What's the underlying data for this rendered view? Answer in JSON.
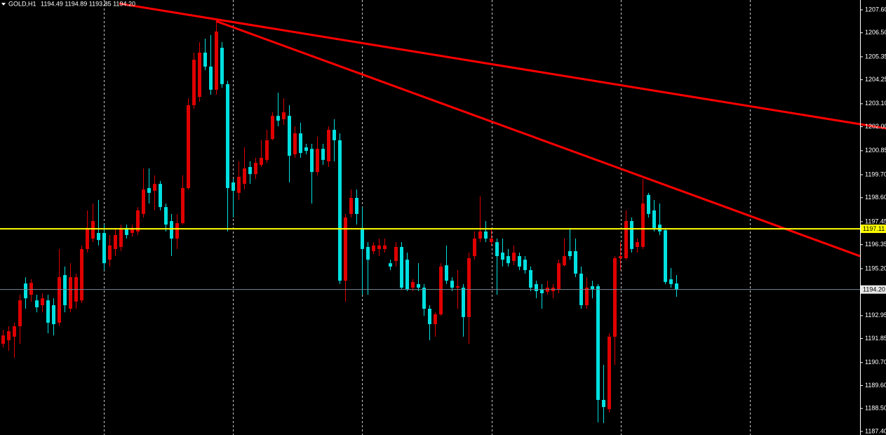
{
  "chart_data": {
    "type": "candlestick",
    "title": "GOLD,H1",
    "subtitle": "1194.49 1194.89 1193.85 1194.20",
    "up_color": "#e00000",
    "down_color": "#00e0e0",
    "ylim": [
      1187.23,
      1208.07
    ],
    "yticks": [
      {
        "value": 1207.6,
        "label": "1207.60"
      },
      {
        "value": 1206.5,
        "label": "1206.50"
      },
      1205.35,
      1204.25,
      {
        "value": 1203.1,
        "label": "1203.10"
      },
      {
        "value": 1202,
        "label": "1202.00"
      },
      1200.85,
      {
        "value": 1199.7,
        "label": "1199.70"
      },
      {
        "value": 1198.6,
        "label": "1198.60"
      },
      1197.45,
      1196.35,
      {
        "value": 1195.2,
        "label": "1195.20"
      },
      1192.95,
      1191.85,
      {
        "value": 1190.7,
        "label": "1190.70"
      },
      {
        "value": 1189.6,
        "label": "1189.60"
      },
      {
        "value": 1188.5,
        "label": "1188.50"
      },
      {
        "value": 1187.4,
        "label": "1187.40"
      }
    ],
    "levels": [
      {
        "value": 1197.11,
        "label": "1197.11",
        "color": "#ffff00"
      }
    ],
    "bid": {
      "value": 1194.2,
      "label": "1194.20",
      "color": "#778899"
    },
    "trendlines": [
      {
        "color": "#ff0000",
        "values": [
          1207.9,
          1201.92
        ]
      },
      {
        "color": "#ff0000",
        "values": [
          1207.06,
          1195.8
        ]
      }
    ],
    "ohlc": [
      [
        1191.6,
        1192.27,
        1191.43,
        1192.0
      ],
      [
        1191.77,
        1192.44,
        1191.26,
        1192.2
      ],
      [
        1191.94,
        1192.61,
        1190.93,
        1192.44
      ],
      [
        1192.44,
        1193.95,
        1191.6,
        1193.68
      ],
      [
        1194.49,
        1194.79,
        1193.28,
        1193.78
      ],
      [
        1193.95,
        1194.69,
        1193.62,
        1194.52
      ],
      [
        1193.68,
        1193.95,
        1193.11,
        1193.35
      ],
      [
        1193.45,
        1194.02,
        1193.11,
        1193.78
      ],
      [
        1193.68,
        1193.95,
        1192.1,
        1192.61
      ],
      [
        1193.45,
        1193.78,
        1192.0,
        1192.54
      ],
      [
        1192.61,
        1196.14,
        1192.44,
        1194.79
      ],
      [
        1194.89,
        1195.3,
        1193.11,
        1193.45
      ],
      [
        1193.28,
        1195.46,
        1193.11,
        1194.79
      ],
      [
        1193.62,
        1194.96,
        1193.28,
        1194.79
      ],
      [
        1193.68,
        1196.31,
        1193.55,
        1196.14
      ],
      [
        1196.14,
        1197.99,
        1195.97,
        1197.15
      ],
      [
        1196.64,
        1198.32,
        1196.47,
        1197.48
      ],
      [
        1196.91,
        1198.49,
        1196.31,
        1196.57
      ],
      [
        1196.91,
        1197.31,
        1195.13,
        1195.46
      ],
      [
        1195.63,
        1196.81,
        1195.3,
        1196.31
      ],
      [
        1196.14,
        1197.15,
        1195.8,
        1196.81
      ],
      [
        1196.24,
        1197.31,
        1196.04,
        1197.15
      ],
      [
        1197.15,
        1197.31,
        1196.64,
        1196.81
      ],
      [
        1196.91,
        1197.31,
        1196.74,
        1197.15
      ],
      [
        1196.98,
        1198.15,
        1196.81,
        1197.99
      ],
      [
        1197.82,
        1200.0,
        1197.65,
        1198.99
      ],
      [
        1199.06,
        1200.0,
        1198.32,
        1198.83
      ],
      [
        1198.93,
        1199.67,
        1197.99,
        1199.26
      ],
      [
        1199.26,
        1199.4,
        1197.99,
        1198.15
      ],
      [
        1198.15,
        1198.32,
        1196.98,
        1197.31
      ],
      [
        1197.48,
        1197.82,
        1195.8,
        1196.64
      ],
      [
        1196.64,
        1197.82,
        1196.14,
        1197.38
      ],
      [
        1197.38,
        1199.67,
        1197.31,
        1199.06
      ],
      [
        1199.06,
        1203.36,
        1198.99,
        1203.03
      ],
      [
        1203.03,
        1205.55,
        1202.86,
        1205.21
      ],
      [
        1203.43,
        1206.05,
        1203.2,
        1205.55
      ],
      [
        1205.55,
        1206.22,
        1204.71,
        1204.88
      ],
      [
        1204.88,
        1206.39,
        1203.53,
        1203.77
      ],
      [
        1203.77,
        1207.06,
        1203.53,
        1206.56
      ],
      [
        1205.78,
        1206.05,
        1203.87,
        1204.04
      ],
      [
        1204.04,
        1204.2,
        1196.98,
        1199.06
      ],
      [
        1199.33,
        1199.5,
        1197.65,
        1198.93
      ],
      [
        1198.83,
        1200.34,
        1198.49,
        1199.6
      ],
      [
        1199.26,
        1201.01,
        1198.99,
        1200.0
      ],
      [
        1200.07,
        1200.34,
        1199.26,
        1199.73
      ],
      [
        1199.73,
        1200.51,
        1199.5,
        1200.27
      ],
      [
        1200.17,
        1201.35,
        1200.07,
        1200.51
      ],
      [
        1200.41,
        1201.85,
        1200.27,
        1201.35
      ],
      [
        1201.41,
        1202.69,
        1201.35,
        1202.52
      ],
      [
        1202.52,
        1203.63,
        1202.02,
        1202.29
      ],
      [
        1202.36,
        1203.36,
        1202.09,
        1202.69
      ],
      [
        1202.52,
        1203.03,
        1199.33,
        1200.61
      ],
      [
        1200.68,
        1202.02,
        1200.51,
        1201.68
      ],
      [
        1201.68,
        1202.19,
        1200.51,
        1200.74
      ],
      [
        1201.01,
        1201.18,
        1200.68,
        1200.84
      ],
      [
        1200.94,
        1201.18,
        1198.32,
        1199.83
      ],
      [
        1199.83,
        1201.52,
        1199.67,
        1200.94
      ],
      [
        1200.94,
        1201.18,
        1200.17,
        1200.41
      ],
      [
        1200.34,
        1202.02,
        1200.07,
        1201.85
      ],
      [
        1201.85,
        1202.36,
        1200.34,
        1201.35
      ],
      [
        1201.35,
        1201.68,
        1194.46,
        1194.62
      ],
      [
        1194.62,
        1197.82,
        1193.62,
        1197.65
      ],
      [
        1197.82,
        1198.99,
        1197.65,
        1198.59
      ],
      [
        1198.59,
        1198.99,
        1197.31,
        1197.82
      ],
      [
        1197.15,
        1198.15,
        1193.95,
        1196.14
      ],
      [
        1196.24,
        1196.47,
        1193.95,
        1195.63
      ],
      [
        1196.04,
        1196.47,
        1195.9,
        1196.31
      ],
      [
        1196.14,
        1196.64,
        1195.8,
        1196.31
      ],
      [
        1196.14,
        1196.64,
        1195.97,
        1196.31
      ],
      [
        1195.46,
        1195.63,
        1195.13,
        1195.3
      ],
      [
        1195.57,
        1196.47,
        1195.3,
        1196.24
      ],
      [
        1196.24,
        1196.47,
        1194.22,
        1194.29
      ],
      [
        1195.63,
        1195.97,
        1194.12,
        1194.22
      ],
      [
        1194.29,
        1194.69,
        1194.12,
        1194.56
      ],
      [
        1194.46,
        1195.46,
        1194.12,
        1194.29
      ],
      [
        1194.29,
        1194.46,
        1192.94,
        1193.28
      ],
      [
        1193.28,
        1193.45,
        1191.77,
        1192.54
      ],
      [
        1192.54,
        1193.11,
        1191.94,
        1193.01
      ],
      [
        1193.01,
        1195.46,
        1192.94,
        1195.3
      ],
      [
        1195.36,
        1196.31,
        1194.46,
        1194.62
      ],
      [
        1194.62,
        1194.79,
        1194.12,
        1194.29
      ],
      [
        1194.29,
        1195.13,
        1193.28,
        1194.36
      ],
      [
        1194.29,
        1194.46,
        1191.94,
        1192.88
      ],
      [
        1192.88,
        1195.97,
        1191.6,
        1195.7
      ],
      [
        1195.8,
        1196.98,
        1195.63,
        1196.64
      ],
      [
        1196.64,
        1198.66,
        1196.47,
        1196.98
      ],
      [
        1196.98,
        1197.48,
        1196.47,
        1196.64
      ],
      [
        1196.47,
        1197.15,
        1196.31,
        1196.64
      ],
      [
        1196.47,
        1196.64,
        1193.95,
        1195.8
      ],
      [
        1195.97,
        1196.64,
        1195.3,
        1195.63
      ],
      [
        1195.8,
        1196.14,
        1195.3,
        1195.46
      ],
      [
        1195.57,
        1196.31,
        1195.36,
        1195.97
      ],
      [
        1195.8,
        1195.97,
        1195.13,
        1195.3
      ],
      [
        1195.63,
        1195.8,
        1194.96,
        1195.13
      ],
      [
        1195.13,
        1195.3,
        1194.12,
        1194.29
      ],
      [
        1194.46,
        1194.62,
        1193.78,
        1194.12
      ],
      [
        1194.22,
        1194.46,
        1193.28,
        1194.02
      ],
      [
        1194.09,
        1194.62,
        1193.95,
        1194.29
      ],
      [
        1194.12,
        1194.46,
        1193.78,
        1194.29
      ],
      [
        1194.22,
        1195.63,
        1194.02,
        1195.46
      ],
      [
        1195.36,
        1196.64,
        1195.3,
        1195.8
      ],
      [
        1196.04,
        1197.15,
        1195.63,
        1195.8
      ],
      [
        1196.04,
        1196.64,
        1194.79,
        1194.96
      ],
      [
        1194.96,
        1195.3,
        1193.28,
        1193.45
      ],
      [
        1193.45,
        1194.79,
        1193.28,
        1194.29
      ],
      [
        1194.36,
        1194.62,
        1193.78,
        1194.22
      ],
      [
        1194.36,
        1194.46,
        1187.83,
        1188.91
      ],
      [
        1188.91,
        1190.59,
        1187.8,
        1188.57
      ],
      [
        1188.47,
        1192.1,
        1188.31,
        1191.94
      ],
      [
        1191.94,
        1195.8,
        1190.59,
        1195.7
      ],
      [
        1195.7,
        1196.47,
        1195.13,
        1195.8
      ],
      [
        1195.7,
        1197.99,
        1195.63,
        1197.48
      ],
      [
        1197.48,
        1197.65,
        1195.97,
        1196.14
      ],
      [
        1196.24,
        1196.64,
        1195.97,
        1196.47
      ],
      [
        1196.24,
        1199.5,
        1196.14,
        1198.32
      ],
      [
        1198.73,
        1198.83,
        1197.65,
        1197.82
      ],
      [
        1197.99,
        1198.49,
        1196.98,
        1197.15
      ],
      [
        1197.31,
        1198.32,
        1196.81,
        1196.98
      ],
      [
        1197.04,
        1197.15,
        1194.46,
        1194.56
      ],
      [
        1194.69,
        1195.23,
        1194.29,
        1194.46
      ],
      [
        1194.49,
        1194.89,
        1193.85,
        1194.2
      ]
    ]
  }
}
